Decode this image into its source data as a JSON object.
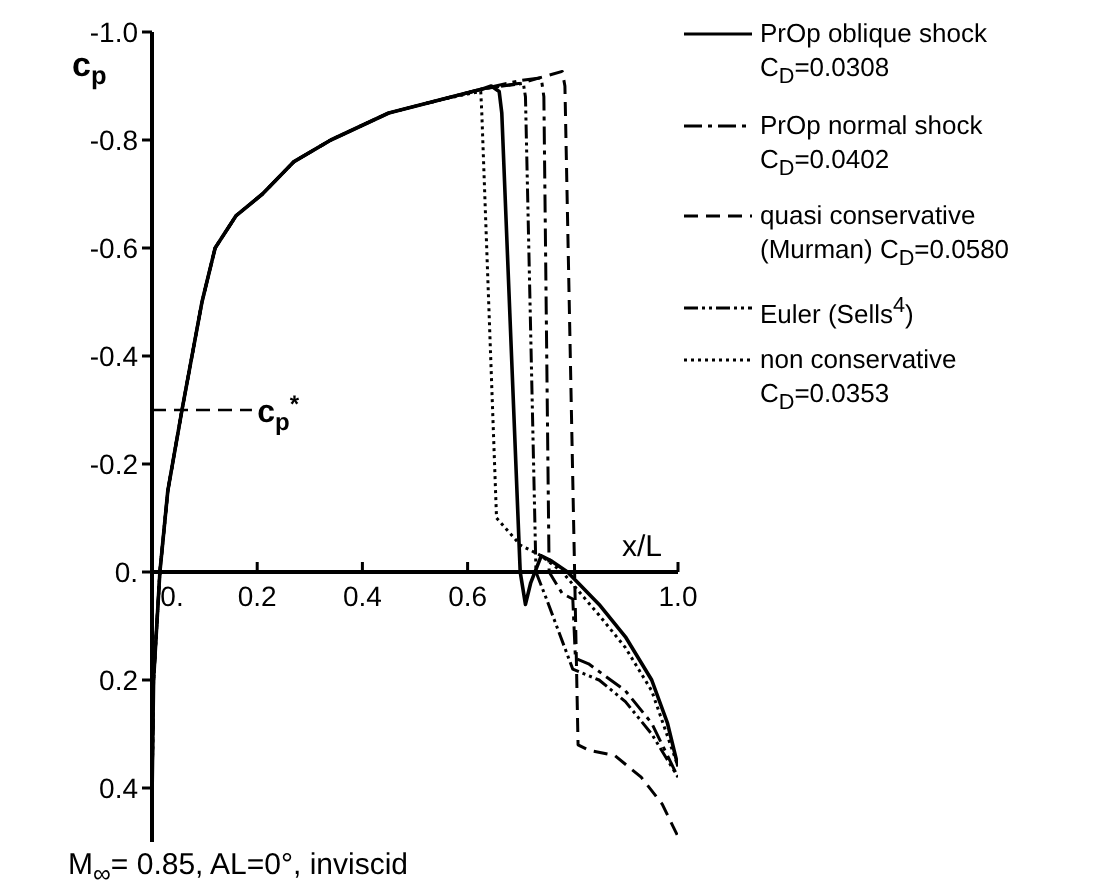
{
  "chart_data": {
    "type": "line",
    "xlabel": "x/L",
    "ylabel": "c$_{p}$",
    "xlim": [
      0,
      1.0
    ],
    "ylim": [
      0.5,
      -1.0
    ],
    "xticks": [
      {
        "value": 0,
        "label": "0."
      },
      0.2,
      0.4,
      0.6,
      {
        "value": 1.0,
        "label": "1.0"
      }
    ],
    "yticks": [
      {
        "value": -1.0,
        "label": "-1.0"
      },
      -0.8,
      -0.6,
      -0.4,
      -0.2,
      {
        "value": 0,
        "label": "0."
      },
      0.2,
      0.4
    ],
    "legend": "top right",
    "grid": false,
    "marker": "none",
    "ref_lines": [
      {
        "axis": "y",
        "value": -0.3,
        "label": "c$_{p}$$^{*}$",
        "line_style": "dashed",
        "color": "#000000"
      }
    ],
    "annotations": [
      "M$_{∞}$= 0.85,  AL=0°,  inviscid"
    ],
    "series": [
      {
        "name": "PrOp oblique shock C$_{D}$=0.0308",
        "color": "#000000",
        "line_style": "solid",
        "x": [
          0.0,
          0.003,
          0.015,
          0.03,
          0.057,
          0.076,
          0.095,
          0.12,
          0.16,
          0.21,
          0.27,
          0.34,
          0.45,
          0.55,
          0.63,
          0.645,
          0.66,
          0.665,
          0.7,
          0.71,
          0.72,
          0.74,
          0.76,
          0.79,
          0.85,
          0.9,
          0.95,
          0.98,
          1.0
        ],
        "values": [
          0.42,
          0.2,
          0,
          -0.15,
          -0.3,
          -0.4,
          -0.5,
          -0.6,
          -0.66,
          -0.7,
          -0.76,
          -0.8,
          -0.85,
          -0.875,
          -0.895,
          -0.9,
          -0.89,
          -0.85,
          0.0,
          0.06,
          0.02,
          -0.03,
          -0.02,
          0.0,
          0.06,
          0.12,
          0.2,
          0.28,
          0.36
        ]
      },
      {
        "name": "PrOp normal shock C$_{D}$=0.0402",
        "color": "#000000",
        "line_style": "dashdot",
        "x": [
          0.0,
          0.003,
          0.015,
          0.03,
          0.057,
          0.076,
          0.095,
          0.12,
          0.16,
          0.21,
          0.27,
          0.34,
          0.45,
          0.55,
          0.63,
          0.7,
          0.74,
          0.745,
          0.755,
          0.78,
          0.8,
          0.805,
          0.83,
          0.9,
          0.95,
          1.0
        ],
        "values": [
          0.42,
          0.2,
          0,
          -0.15,
          -0.3,
          -0.4,
          -0.5,
          -0.6,
          -0.66,
          -0.7,
          -0.76,
          -0.8,
          -0.85,
          -0.875,
          -0.895,
          -0.91,
          -0.915,
          -0.88,
          0.0,
          0.04,
          0.05,
          0.16,
          0.17,
          0.22,
          0.28,
          0.38
        ]
      },
      {
        "name": "quasi conservative (Murman) C$_{D}$=0.0580",
        "color": "#000000",
        "line_style": "dashed",
        "x": [
          0.0,
          0.003,
          0.015,
          0.03,
          0.057,
          0.076,
          0.095,
          0.12,
          0.16,
          0.21,
          0.27,
          0.34,
          0.45,
          0.55,
          0.63,
          0.7,
          0.78,
          0.785,
          0.81,
          0.83,
          0.88,
          0.93,
          0.97,
          1.0
        ],
        "values": [
          0.42,
          0.2,
          0,
          -0.15,
          -0.3,
          -0.4,
          -0.5,
          -0.6,
          -0.66,
          -0.7,
          -0.76,
          -0.8,
          -0.85,
          -0.875,
          -0.895,
          -0.905,
          -0.927,
          -0.9,
          0.32,
          0.33,
          0.34,
          0.38,
          0.43,
          0.49
        ]
      },
      {
        "name": "Euler (Sells$^{4}$)",
        "color": "#000000",
        "line_style": "dashdotdot",
        "x": [
          0.0,
          0.003,
          0.015,
          0.03,
          0.057,
          0.076,
          0.095,
          0.12,
          0.16,
          0.21,
          0.27,
          0.34,
          0.45,
          0.55,
          0.63,
          0.706,
          0.71,
          0.73,
          0.75,
          0.8,
          0.85,
          0.9,
          0.95,
          1.0
        ],
        "values": [
          0.42,
          0.2,
          0,
          -0.15,
          -0.3,
          -0.4,
          -0.5,
          -0.6,
          -0.66,
          -0.7,
          -0.76,
          -0.8,
          -0.85,
          -0.875,
          -0.895,
          -0.905,
          -0.88,
          0.0,
          0.05,
          0.18,
          0.2,
          0.24,
          0.3,
          0.38
        ]
      },
      {
        "name": "non conservative C$_{D}$=0.0353",
        "color": "#000000",
        "line_style": "dotted",
        "x": [
          0.0,
          0.003,
          0.015,
          0.03,
          0.057,
          0.076,
          0.095,
          0.12,
          0.16,
          0.21,
          0.27,
          0.34,
          0.45,
          0.55,
          0.6,
          0.625,
          0.627,
          0.655,
          0.7,
          0.74,
          0.78,
          0.85,
          0.9,
          0.95,
          1.0
        ],
        "values": [
          0.42,
          0.2,
          0,
          -0.15,
          -0.3,
          -0.4,
          -0.5,
          -0.6,
          -0.66,
          -0.7,
          -0.76,
          -0.8,
          -0.85,
          -0.875,
          -0.885,
          -0.89,
          -0.85,
          -0.1,
          -0.05,
          -0.03,
          0.0,
          0.08,
          0.14,
          0.22,
          0.36
        ]
      }
    ]
  }
}
